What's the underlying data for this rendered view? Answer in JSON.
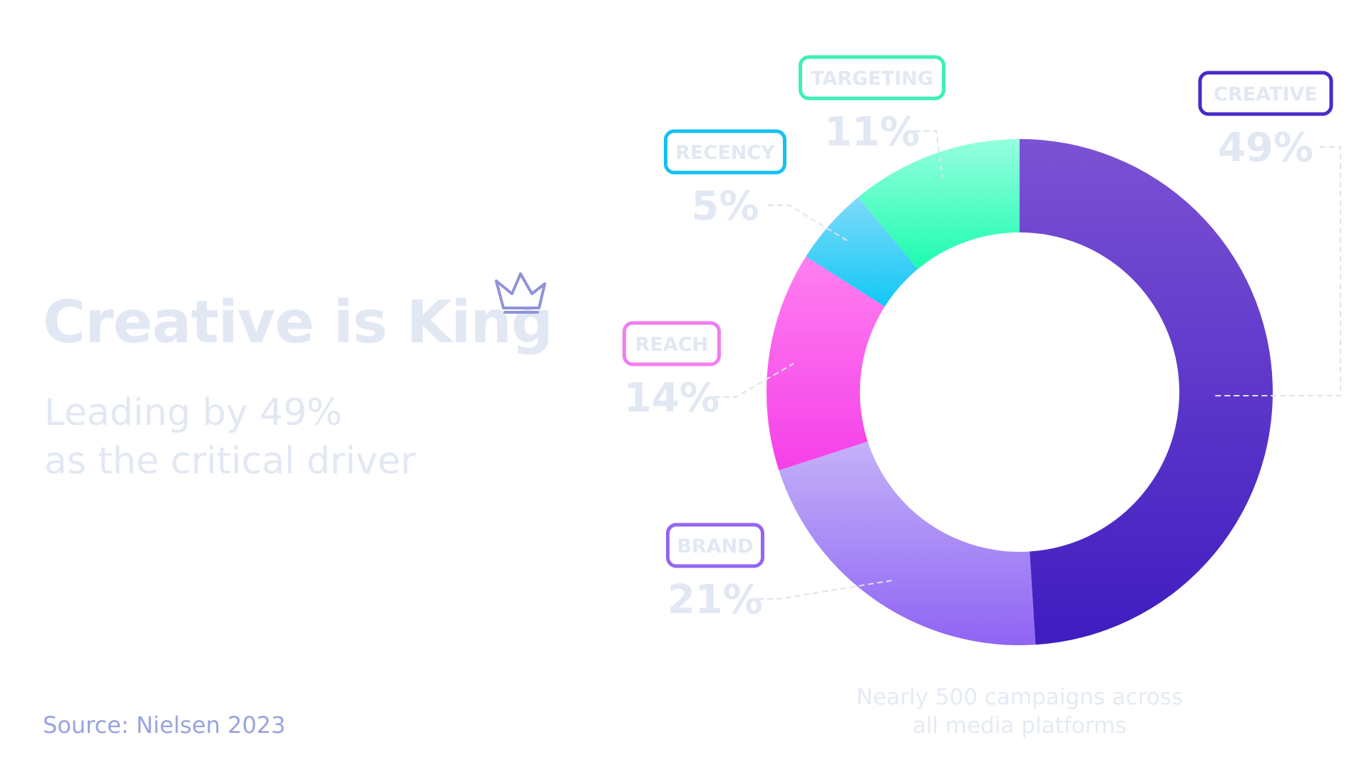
{
  "headline": {
    "title": "Creative is King",
    "subtitle_line1": "Leading by 49%",
    "subtitle_line2": "as the critical driver",
    "crown_icon": "crown-icon"
  },
  "source": "Source: Nielsen 2023",
  "footnote": {
    "line1": "Nearly 500 campaigns across",
    "line2": "all media platforms"
  },
  "colors": {
    "muted_text": "#e2e8f3",
    "source_text": "#9aa4dc",
    "leader_line": "#dde3ec"
  },
  "chart_data": {
    "type": "pie",
    "style": "donut",
    "title": "",
    "categories": [
      "CREATIVE",
      "BRAND",
      "REACH",
      "RECENCY",
      "TARGETING"
    ],
    "values": [
      49,
      21,
      14,
      5,
      11
    ],
    "value_labels": [
      "49%",
      "21%",
      "14%",
      "5%",
      "11%"
    ],
    "start_angle": "12 o'clock",
    "direction": "clockwise",
    "colors": [
      {
        "top": "#7b52d3",
        "bottom": "#3f1cc0",
        "border": "#4a2bc9"
      },
      {
        "top": "#c4b2f8",
        "bottom": "#8f64f4",
        "border": "#9565f1"
      },
      {
        "top": "#ff7ff0",
        "bottom": "#f540e8",
        "border": "#f27ef0"
      },
      {
        "top": "#7fdaf9",
        "bottom": "#10c8f5",
        "border": "#16bff2"
      },
      {
        "top": "#96ffde",
        "bottom": "#1cfcaf",
        "border": "#3df0b8"
      }
    ]
  }
}
